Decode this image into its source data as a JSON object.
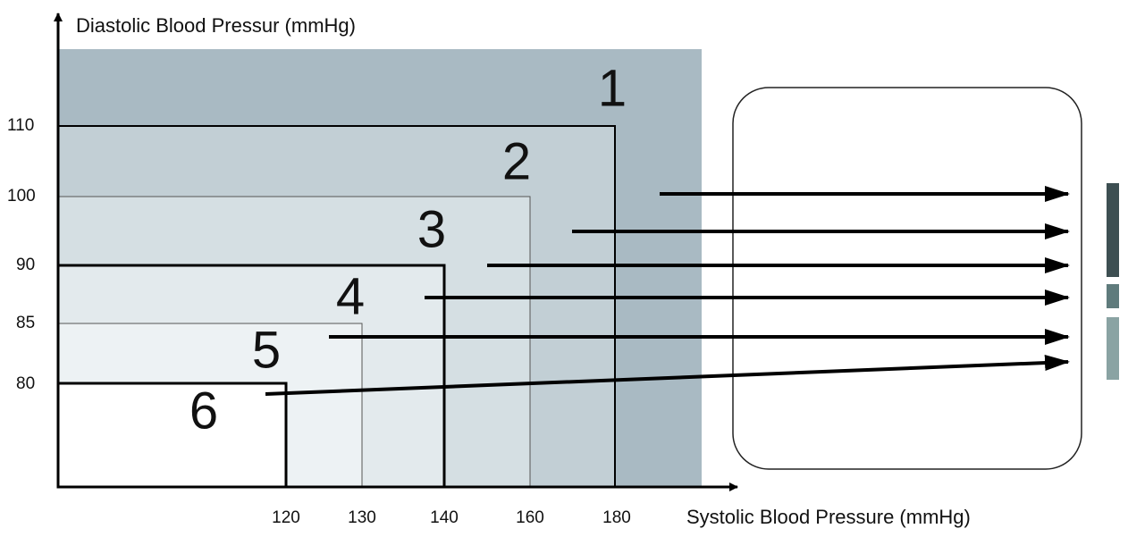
{
  "y_axis": {
    "title": "Diastolic Blood Pressur (mmHg)",
    "ticks": [
      "110",
      "100",
      "90",
      "85",
      "80"
    ]
  },
  "x_axis": {
    "title": "Systolic Blood Pressure (mmHg)",
    "ticks": [
      "120",
      "130",
      "140",
      "160",
      "180"
    ]
  },
  "zones": [
    {
      "label": "1"
    },
    {
      "label": "2"
    },
    {
      "label": "3"
    },
    {
      "label": "4"
    },
    {
      "label": "5"
    },
    {
      "label": "6"
    }
  ]
}
